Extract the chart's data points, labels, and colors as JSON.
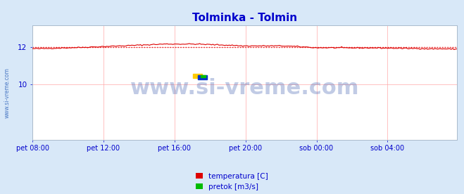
{
  "title": "Tolminka - Tolmin",
  "title_color": "#0000cc",
  "title_fontsize": 11,
  "bg_color": "#d8e8f8",
  "plot_bg_color": "#ffffff",
  "grid_color": "#ffaaaa",
  "watermark_text": "www.si-vreme.com",
  "watermark_color": "#3355aa",
  "watermark_fontsize": 22,
  "x_tick_labels": [
    "pet 08:00",
    "pet 12:00",
    "pet 16:00",
    "pet 20:00",
    "sob 00:00",
    "sob 04:00"
  ],
  "x_tick_positions": [
    0,
    48,
    96,
    144,
    192,
    240
  ],
  "yticks": [
    10,
    12
  ],
  "ylim": [
    7.0,
    13.2
  ],
  "xlim": [
    0,
    287
  ],
  "temp_color": "#dd0000",
  "pretok_color": "#00bb00",
  "visina_color": "#0000cc",
  "legend_labels": [
    "temperatura [C]",
    "pretok [m3/s]"
  ],
  "legend_colors": [
    "#dd0000",
    "#00bb00"
  ],
  "avg_temp": 12.0,
  "n_points": 288,
  "left_label": "www.si-vreme.com"
}
